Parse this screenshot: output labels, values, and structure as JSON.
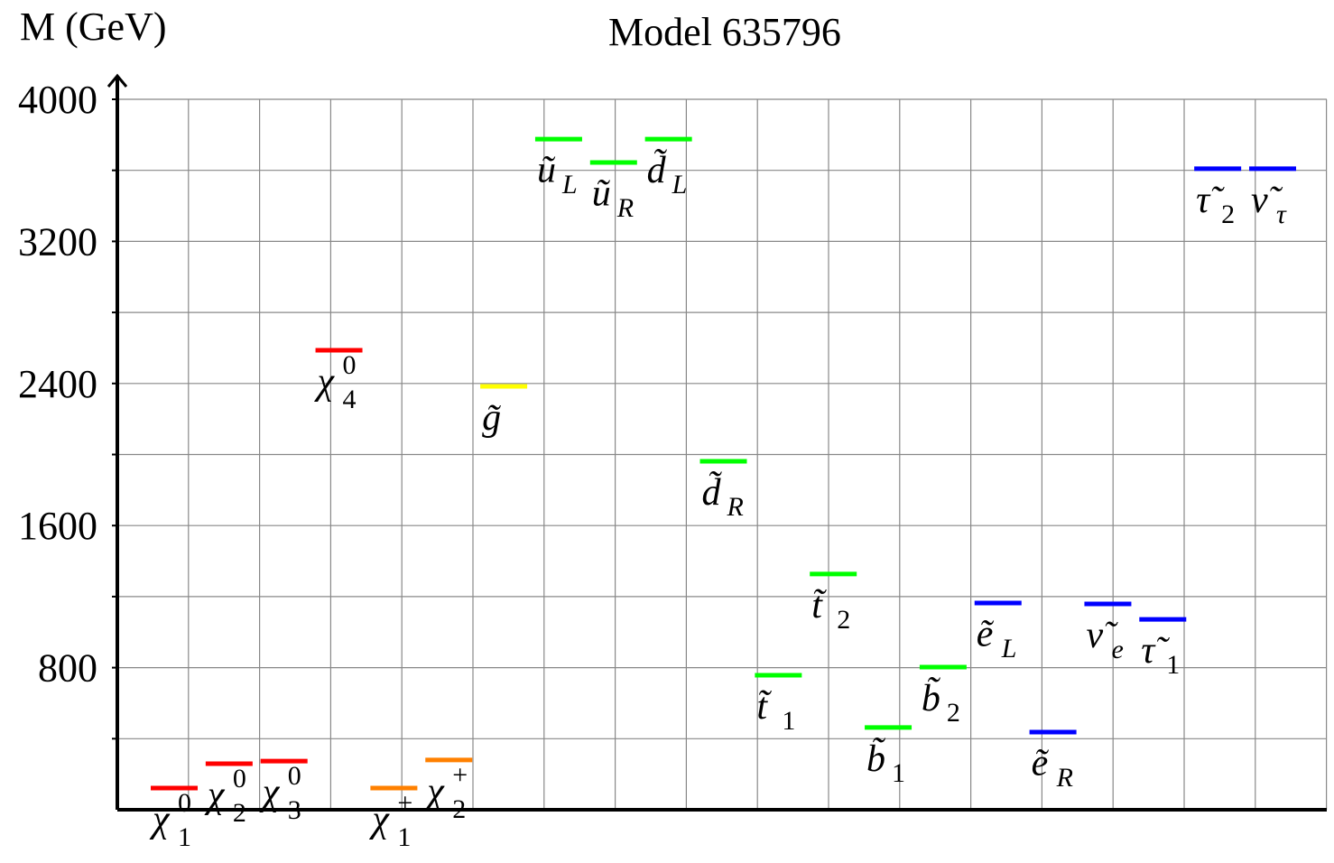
{
  "chart_data": {
    "type": "levels",
    "title": "Model 635796",
    "ylabel": "M (GeV)",
    "categories": [
      {
        "symbol": "χ",
        "sub": "1",
        "sup": "0"
      },
      {
        "symbol": "χ",
        "sub": "2",
        "sup": "0"
      },
      {
        "symbol": "χ",
        "sub": "3",
        "sup": "0"
      },
      {
        "symbol": "χ",
        "sub": "4",
        "sup": "0"
      },
      {
        "symbol": "χ",
        "sub": "1",
        "sup": "+"
      },
      {
        "symbol": "χ",
        "sub": "2",
        "sup": "+"
      },
      {
        "symbol": "g̃"
      },
      {
        "symbol": "ũ",
        "sub": "L"
      },
      {
        "symbol": "ũ",
        "sub": "R"
      },
      {
        "symbol": "d̃",
        "sub": "L"
      },
      {
        "symbol": "d̃",
        "sub": "R"
      },
      {
        "symbol": "t̃",
        "sub": "1"
      },
      {
        "symbol": "t̃",
        "sub": "2"
      },
      {
        "symbol": "b̃",
        "sub": "1"
      },
      {
        "symbol": "b̃",
        "sub": "2"
      },
      {
        "symbol": "ẽ",
        "sub": "L"
      },
      {
        "symbol": "ẽ",
        "sub": "R"
      },
      {
        "symbol": "ν̃",
        "sub": "e"
      },
      {
        "symbol": "τ̃",
        "sub": "1"
      },
      {
        "symbol": "τ̃",
        "sub": "2"
      },
      {
        "symbol": "ν̃",
        "sub": "τ"
      }
    ],
    "values": [
      122,
      259,
      274,
      2587,
      122,
      280,
      2384,
      3776,
      3644,
      3776,
      1962,
      757,
      1327,
      463,
      803,
      1164,
      437,
      1159,
      1072,
      3609,
      3609
    ],
    "colors": [
      "#ff0000",
      "#ff0000",
      "#ff0000",
      "#ff0000",
      "#ff8000",
      "#ff8000",
      "#ffff00",
      "#00ff00",
      "#00ff00",
      "#00ff00",
      "#00ff00",
      "#00ff00",
      "#00ff00",
      "#00ff00",
      "#00ff00",
      "#0000ff",
      "#0000ff",
      "#0000ff",
      "#0000ff",
      "#0000ff",
      "#0000ff"
    ],
    "ylim": [
      0,
      4000
    ],
    "yticks": [
      800,
      1600,
      2400,
      3200,
      4000
    ],
    "minor_yticks": [
      400,
      1200,
      2000,
      2800,
      3600
    ],
    "grid": true
  }
}
